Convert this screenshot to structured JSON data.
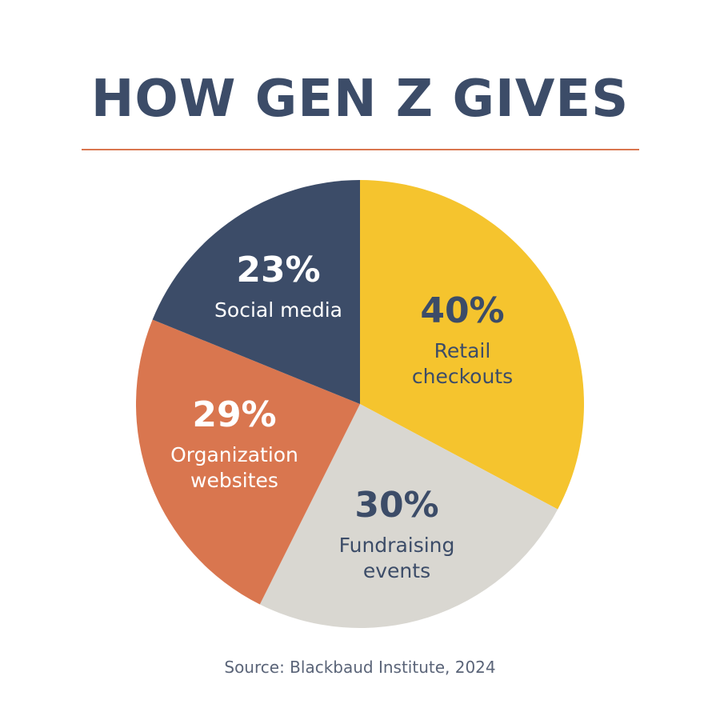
{
  "header": {
    "title": "HOW GEN Z GIVES"
  },
  "footer": {
    "source": "Source: Blackbaud Institute, 2024"
  },
  "colors": {
    "title": "#3c4c68",
    "divider": "#d9764f",
    "dark_text": "#3c4c68",
    "light_text": "#ffffff"
  },
  "chart_data": {
    "type": "pie",
    "start_angle_deg": 0,
    "direction": "clockwise",
    "slices": [
      {
        "key": "retail",
        "value": 40,
        "pct_label": "40%",
        "label_lines": [
          "Retail",
          "checkouts"
        ],
        "color": "#f5c42e",
        "text_color": "#3c4c68"
      },
      {
        "key": "fundraising",
        "value": 30,
        "pct_label": "30%",
        "label_lines": [
          "Fundraising",
          "events"
        ],
        "color": "#d9d7d1",
        "text_color": "#3c4c68"
      },
      {
        "key": "organization",
        "value": 29,
        "pct_label": "29%",
        "label_lines": [
          "Organization",
          "websites"
        ],
        "color": "#d9764f",
        "text_color": "#ffffff"
      },
      {
        "key": "social",
        "value": 23,
        "pct_label": "23%",
        "label_lines": [
          "Social media"
        ],
        "color": "#3c4c68",
        "text_color": "#ffffff"
      }
    ]
  }
}
